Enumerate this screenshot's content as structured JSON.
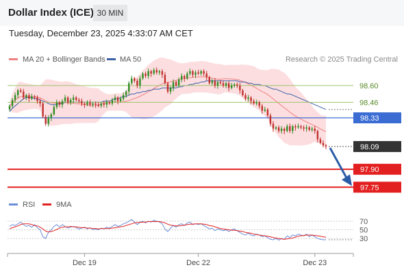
{
  "header": {
    "title": "Dollar Index (ICE)",
    "interval": "30 MIN",
    "timestamp": "Tuesday, December 23, 2025 4:33:07 AM CET"
  },
  "legend": {
    "bb": "MA 20 + Bollinger Bands",
    "ma50": "MA 50",
    "credit": "Research © 2025 Trading Central",
    "rsi": "RSI",
    "rsi_ma": "9MA"
  },
  "colors": {
    "up": "#2e8b22",
    "down": "#c0302c",
    "bb_fill": "#fbd3d5",
    "ma20": "#f08080",
    "ma50": "#3a5fa8",
    "resistance": "#9dc56b",
    "pivot": "#3b6cd3",
    "support": "#e32020",
    "last": "#333333",
    "rsi": "#6a8fd8",
    "rsi_ma": "#e32020",
    "arrow": "#2a5ba6"
  },
  "chart_data": [
    {
      "type": "candlestick",
      "x_ticks": [
        "Dec 19",
        "Dec 22",
        "Dec 23"
      ],
      "ylim": [
        97.7,
        98.8
      ],
      "levels": [
        {
          "value": 98.6,
          "label": "98.60",
          "kind": "resistance"
        },
        {
          "value": 98.46,
          "label": "98.46",
          "kind": "resistance"
        },
        {
          "value": 98.33,
          "label": "98.33",
          "kind": "pivot"
        },
        {
          "value": 97.9,
          "label": "97.90",
          "kind": "support"
        },
        {
          "value": 97.75,
          "label": "97.75",
          "kind": "support"
        }
      ],
      "last_price": {
        "value": 98.09,
        "label": "98.09"
      },
      "forecast": {
        "from": 98.09,
        "to": 97.76
      },
      "close": [
        98.43,
        98.48,
        98.52,
        98.56,
        98.55,
        98.5,
        98.52,
        98.49,
        98.51,
        98.5,
        98.47,
        98.45,
        98.34,
        98.28,
        98.33,
        98.36,
        98.42,
        98.46,
        98.44,
        98.47,
        98.5,
        98.46,
        98.48,
        98.5,
        98.48,
        98.47,
        98.45,
        98.44,
        98.46,
        98.44,
        98.45,
        98.44,
        98.43,
        98.45,
        98.44,
        98.46,
        98.45,
        98.48,
        98.5,
        98.47,
        98.49,
        98.52,
        98.55,
        98.62,
        98.66,
        98.64,
        98.6,
        98.66,
        98.7,
        98.68,
        98.72,
        98.7,
        98.73,
        98.71,
        98.72,
        98.69,
        98.62,
        98.55,
        98.58,
        98.63,
        98.6,
        98.65,
        98.68,
        98.66,
        98.7,
        98.72,
        98.69,
        98.71,
        98.7,
        98.72,
        98.7,
        98.67,
        98.62,
        98.64,
        98.6,
        98.63,
        98.62,
        98.6,
        98.62,
        98.58,
        98.6,
        98.61,
        98.6,
        98.56,
        98.52,
        98.49,
        98.5,
        98.47,
        98.45,
        98.46,
        98.43,
        98.39,
        98.4,
        98.35,
        98.28,
        98.24,
        98.25,
        98.22,
        98.24,
        98.22,
        98.26,
        98.22,
        98.26,
        98.25,
        98.26,
        98.25,
        98.24,
        98.25,
        98.23,
        98.24,
        98.22,
        98.15,
        98.12,
        98.1,
        98.09
      ],
      "ma50": [
        98.38,
        98.41,
        98.43,
        98.45,
        98.47,
        98.49,
        98.5,
        98.5,
        98.5,
        98.49,
        98.49,
        98.48,
        98.47,
        98.46,
        98.45,
        98.44,
        98.44,
        98.44,
        98.45,
        98.45,
        98.46,
        98.46,
        98.46,
        98.46,
        98.46,
        98.46,
        98.46,
        98.46,
        98.46,
        98.46,
        98.46,
        98.46,
        98.46,
        98.46,
        98.47,
        98.47,
        98.47,
        98.48,
        98.49,
        98.49,
        98.5,
        98.51,
        98.51,
        98.52,
        98.53,
        98.53,
        98.54,
        98.54,
        98.55,
        98.55,
        98.56,
        98.56,
        98.57,
        98.57,
        98.57,
        98.58,
        98.58,
        98.58,
        98.58,
        98.58,
        98.58,
        98.59,
        98.59,
        98.6,
        98.6,
        98.61,
        98.61,
        98.62,
        98.62,
        98.63,
        98.63,
        98.64,
        98.64,
        98.64,
        98.64,
        98.64,
        98.64,
        98.64,
        98.64,
        98.64,
        98.64,
        98.64,
        98.64,
        98.63,
        98.63,
        98.63,
        98.62,
        98.62,
        98.61,
        98.61,
        98.61,
        98.6,
        98.6,
        98.59,
        98.58,
        98.57,
        98.57,
        98.56,
        98.55,
        98.54,
        98.53,
        98.53,
        98.52,
        98.51,
        98.5,
        98.49,
        98.48,
        98.47,
        98.46,
        98.45,
        98.44,
        98.43,
        98.42,
        98.41,
        98.4
      ],
      "rsi": [
        58,
        62,
        60,
        64,
        68,
        62,
        58,
        60,
        56,
        62,
        55,
        50,
        34,
        30,
        44,
        50,
        58,
        62,
        57,
        62,
        58,
        54,
        56,
        58,
        55,
        52,
        54,
        56,
        52,
        55,
        50,
        52,
        50,
        54,
        52,
        56,
        54,
        58,
        62,
        58,
        60,
        64,
        66,
        70,
        74,
        68,
        62,
        68,
        70,
        66,
        70,
        68,
        72,
        70,
        68,
        64,
        52,
        46,
        54,
        60,
        56,
        62,
        64,
        60,
        66,
        68,
        62,
        64,
        62,
        64,
        60,
        56,
        52,
        54,
        48,
        52,
        50,
        48,
        50,
        46,
        50,
        52,
        48,
        44,
        40,
        38,
        42,
        38,
        36,
        40,
        38,
        34,
        36,
        32,
        28,
        27,
        30,
        26,
        30,
        28,
        36,
        32,
        38,
        36,
        40,
        38,
        36,
        40,
        34,
        38,
        34,
        30,
        28,
        27,
        27
      ],
      "rsi_ma": [
        52,
        55,
        57,
        59,
        62,
        64,
        64,
        64,
        62,
        60,
        59,
        56,
        52,
        47,
        45,
        46,
        48,
        51,
        54,
        56,
        57,
        57,
        58,
        57,
        57,
        56,
        55,
        55,
        54,
        54,
        53,
        53,
        52,
        53,
        53,
        53,
        53,
        54,
        55,
        56,
        57,
        58,
        60,
        62,
        64,
        66,
        67,
        67,
        68,
        68,
        69,
        69,
        69,
        69,
        69,
        68,
        66,
        63,
        61,
        60,
        59,
        59,
        60,
        61,
        62,
        63,
        63,
        64,
        64,
        64,
        63,
        62,
        60,
        59,
        57,
        55,
        53,
        52,
        51,
        50,
        49,
        49,
        48,
        47,
        46,
        44,
        43,
        42,
        40,
        39,
        38,
        37,
        36,
        35,
        34,
        32,
        31,
        30,
        29,
        28,
        29,
        30,
        31,
        33,
        35,
        36,
        37,
        38,
        38,
        38,
        37,
        36,
        35,
        34,
        33
      ],
      "rsi_ticks": [
        70,
        50,
        30
      ]
    }
  ]
}
